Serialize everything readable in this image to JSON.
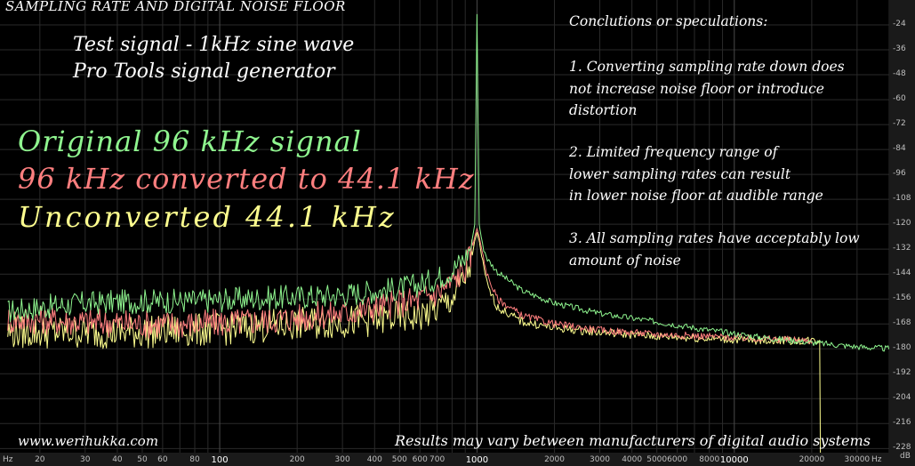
{
  "chart_data": {
    "type": "line",
    "title": "SAMPLING RATE AND DIGITAL NOISE FLOOR",
    "subtitle": [
      "Test signal - 1kHz sine wave",
      "Pro Tools signal generator"
    ],
    "xlabel_unit": "Hz",
    "ylabel_unit": "dB",
    "x_scale": "log",
    "xlim": [
      14,
      40000
    ],
    "ylim": [
      -230,
      -12
    ],
    "grid": true,
    "x_ticks": [
      {
        "value": 20,
        "label": "20"
      },
      {
        "value": 30,
        "label": "30"
      },
      {
        "value": 40,
        "label": "40"
      },
      {
        "value": 50,
        "label": "50"
      },
      {
        "value": 60,
        "label": "60"
      },
      {
        "value": 80,
        "label": "80"
      },
      {
        "value": 100,
        "label": "100"
      },
      {
        "value": 200,
        "label": "200"
      },
      {
        "value": 300,
        "label": "300"
      },
      {
        "value": 400,
        "label": "400"
      },
      {
        "value": 500,
        "label": "500"
      },
      {
        "value": 600,
        "label": "600"
      },
      {
        "value": 700,
        "label": "700"
      },
      {
        "value": 1000,
        "label": "1000"
      },
      {
        "value": 2000,
        "label": "2000"
      },
      {
        "value": 3000,
        "label": "3000"
      },
      {
        "value": 4000,
        "label": "4000"
      },
      {
        "value": 5000,
        "label": "5000"
      },
      {
        "value": 6000,
        "label": "6000"
      },
      {
        "value": 8000,
        "label": "8000"
      },
      {
        "value": 10000,
        "label": "10000"
      },
      {
        "value": 20000,
        "label": "20000"
      },
      {
        "value": 30000,
        "label": "30000"
      }
    ],
    "major_x": [
      100,
      1000,
      10000
    ],
    "y_ticks": [
      -24,
      -36,
      -48,
      -60,
      -72,
      -84,
      -96,
      -108,
      -120,
      -132,
      -144,
      -156,
      -168,
      -180,
      -192,
      -204,
      -216,
      -228
    ],
    "series": [
      {
        "name": "Original 96 kHz signal",
        "color": "#8ff58f",
        "x": [
          15,
          20,
          30,
          50,
          80,
          120,
          200,
          300,
          400,
          500,
          600,
          700,
          800,
          900,
          950,
          980,
          1000,
          1020,
          1050,
          1100,
          1200,
          1500,
          2000,
          3000,
          5000,
          8000,
          12000,
          20000,
          30000,
          40000
        ],
        "y": [
          -162,
          -160,
          -158,
          -157,
          -157,
          -156,
          -155,
          -154,
          -152,
          -151,
          -149,
          -146,
          -142,
          -136,
          -130,
          -120,
          -19,
          -120,
          -130,
          -137,
          -143,
          -152,
          -158,
          -163,
          -167,
          -171,
          -174,
          -177,
          -179,
          -180
        ]
      },
      {
        "name": "96 kHz converted to 44.1 kHz",
        "color": "#ff7f7f",
        "x": [
          15,
          20,
          30,
          50,
          80,
          120,
          200,
          300,
          400,
          500,
          600,
          700,
          800,
          900,
          950,
          980,
          1000,
          1020,
          1050,
          1100,
          1200,
          1500,
          2000,
          3000,
          5000,
          8000,
          12000,
          20000
        ],
        "y": [
          -166,
          -166,
          -167,
          -168,
          -168,
          -167,
          -165,
          -163,
          -160,
          -158,
          -156,
          -153,
          -148,
          -141,
          -134,
          -126,
          -122,
          -126,
          -134,
          -145,
          -156,
          -164,
          -168,
          -171,
          -173,
          -174,
          -175,
          -176
        ]
      },
      {
        "name": "Unconverted 44.1 kHz",
        "color": "#ffff8f",
        "x": [
          15,
          20,
          30,
          50,
          80,
          120,
          200,
          300,
          400,
          500,
          600,
          700,
          800,
          900,
          950,
          980,
          1000,
          1020,
          1050,
          1100,
          1200,
          1500,
          2000,
          3000,
          5000,
          8000,
          12000,
          20000,
          21500,
          21600,
          21700
        ],
        "y": [
          -172,
          -172,
          -172,
          -172,
          -171,
          -170,
          -168,
          -167,
          -166,
          -165,
          -164,
          -161,
          -156,
          -146,
          -138,
          -128,
          -124,
          -128,
          -138,
          -150,
          -160,
          -167,
          -170,
          -172,
          -174,
          -175,
          -176,
          -176,
          -176,
          -230,
          -230
        ]
      }
    ]
  },
  "overlay": {
    "conclusions_heading": "Conclutions or speculations:",
    "notes": [
      [
        "1. Converting sampling rate down does",
        "not increase noise floor or introduce",
        "distortion"
      ],
      [
        "2. Limited frequency range of",
        "lower sampling rates can result",
        "in lower noise floor at audible range"
      ],
      [
        "3. All sampling rates have acceptably low",
        "amount of noise"
      ]
    ],
    "website": "www.werihukka.com",
    "disclaimer": "Results may vary between manufacturers of digital audio systems"
  },
  "axis_units": {
    "x_left": "Hz",
    "x_right": "Hz",
    "y": "dB"
  },
  "colors": {
    "background": "#000000",
    "grid_minor": "#2a2a2a",
    "grid_major": "#4a4a4a"
  }
}
